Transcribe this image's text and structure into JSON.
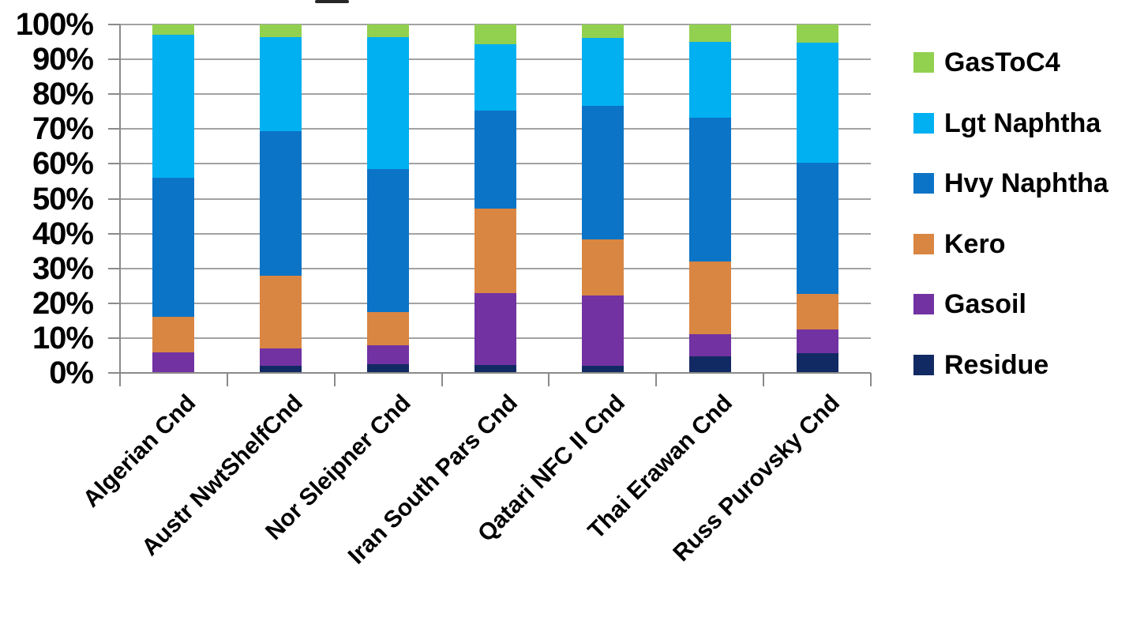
{
  "chart_data": {
    "type": "bar",
    "stacked": true,
    "units": "percent",
    "title": "",
    "xlabel": "",
    "ylabel": "",
    "ylim": [
      0,
      100
    ],
    "grid": true,
    "legend_position": "right",
    "y_ticks": [
      "100%",
      "90%",
      "80%",
      "70%",
      "60%",
      "50%",
      "40%",
      "30%",
      "20%",
      "10%",
      "0%"
    ],
    "categories": [
      "Algerian Cnd",
      "Austr NwtShelfCnd",
      "Nor Sleipner Cnd",
      "Iran South Pars Cnd",
      "Qatari NFC II Cnd",
      "Thai Erawan Cnd",
      "Russ Purovsky Cnd"
    ],
    "series": [
      {
        "name": "Residue",
        "color": "#122a63",
        "values": [
          0.0,
          2.0,
          2.6,
          2.3,
          2.0,
          4.8,
          5.7
        ]
      },
      {
        "name": "Gasoil",
        "color": "#7232a2",
        "values": [
          6.0,
          5.0,
          5.4,
          20.7,
          20.3,
          6.2,
          6.7
        ]
      },
      {
        "name": "Kero",
        "color": "#d98643",
        "values": [
          10.0,
          21.0,
          9.5,
          24.2,
          16.0,
          20.9,
          10.2
        ]
      },
      {
        "name": "Hvy Naphtha",
        "color": "#0b74c6",
        "values": [
          40.0,
          41.5,
          41.0,
          28.1,
          38.3,
          41.4,
          37.8
        ]
      },
      {
        "name": "Lgt Naphtha",
        "color": "#00b0f0",
        "values": [
          41.0,
          26.8,
          37.8,
          19.1,
          19.6,
          21.7,
          34.3
        ]
      },
      {
        "name": "GasToC4",
        "color": "#92d050",
        "values": [
          3.0,
          3.7,
          3.7,
          5.6,
          3.8,
          5.0,
          5.3
        ]
      }
    ],
    "legend_order_top_to_bottom": [
      "GasToC4",
      "Lgt Naphtha",
      "Hvy Naphtha",
      "Kero",
      "Gasoil",
      "Residue"
    ]
  },
  "colors": {
    "background": "#ffffff",
    "gridline": "#a2a2a2",
    "axis": "#8a8a8a",
    "text": "#000000"
  }
}
